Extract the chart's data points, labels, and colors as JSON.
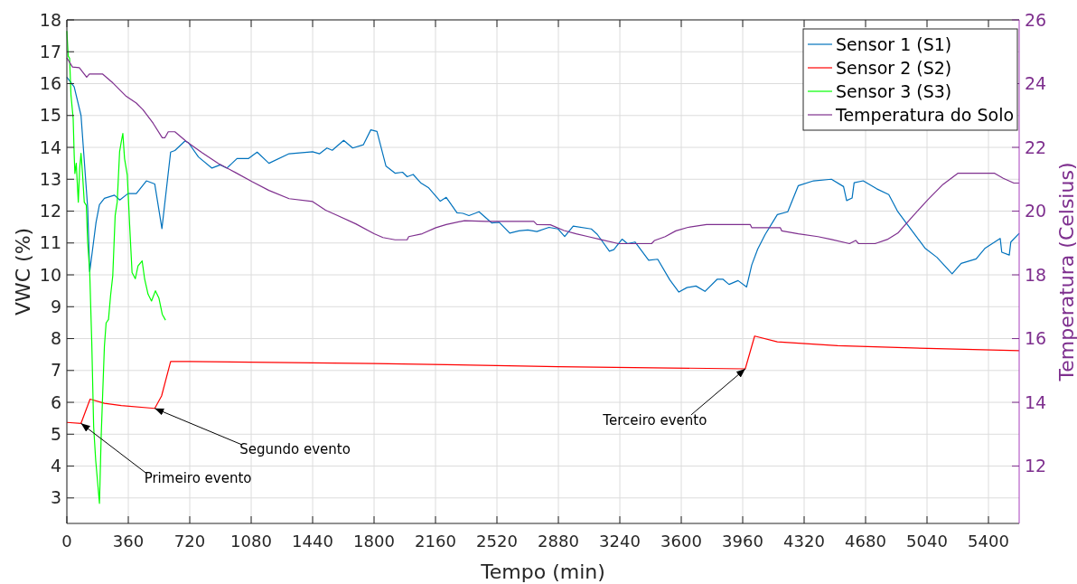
{
  "chart_data": {
    "type": "line",
    "xlabel": "Tempo (min)",
    "ylabel": "VWC (%)",
    "y2label": "Temperatura (Celsius)",
    "xlim": [
      0,
      5580
    ],
    "xticks": [
      0,
      360,
      720,
      1080,
      1440,
      1800,
      2160,
      2520,
      2880,
      3240,
      3600,
      3960,
      4320,
      4680,
      5040,
      5400
    ],
    "ylim": [
      2.2,
      18
    ],
    "yticks": [
      3,
      4,
      5,
      6,
      7,
      8,
      9,
      10,
      11,
      12,
      13,
      14,
      15,
      16,
      17,
      18
    ],
    "y2lim": [
      10.2,
      26
    ],
    "y2ticks": [
      12,
      14,
      16,
      18,
      20,
      22,
      24,
      26
    ],
    "grid": true,
    "legend": "top right",
    "line_style": "solid",
    "marker": "none",
    "series": [
      {
        "name": "Sensor 1 (S1)",
        "color": "#0072bd",
        "x": [
          0,
          43,
          83,
          122,
          134,
          171,
          191,
          220,
          279,
          310,
          358,
          407,
          466,
          515,
          557,
          608,
          633,
          692,
          712,
          771,
          850,
          899,
          938,
          997,
          1065,
          1115,
          1184,
          1302,
          1440,
          1481,
          1524,
          1555,
          1622,
          1675,
          1737,
          1781,
          1817,
          1870,
          1923,
          1967,
          1994,
          2029,
          2073,
          2118,
          2188,
          2223,
          2286,
          2321,
          2356,
          2415,
          2489,
          2533,
          2595,
          2648,
          2701,
          2754,
          2825,
          2878,
          2917,
          2967,
          3073,
          3108,
          3179,
          3205,
          3253,
          3285,
          3329,
          3409,
          3462,
          3533,
          3586,
          3633,
          3686,
          3739,
          3810,
          3845,
          3880,
          3933,
          3983,
          4013,
          4048,
          4092,
          4163,
          4224,
          4286,
          4375,
          4480,
          4551,
          4569,
          4601,
          4613,
          4666,
          4745,
          4816,
          4869,
          4922,
          5028,
          5098,
          5187,
          5240,
          5328,
          5381,
          5469,
          5478,
          5522,
          5531,
          5580
        ],
        "values": [
          16.2,
          15.9,
          15.0,
          12.1,
          10.1,
          11.65,
          12.2,
          12.4,
          12.5,
          12.35,
          12.55,
          12.55,
          12.95,
          12.85,
          11.45,
          13.85,
          13.9,
          14.2,
          14.15,
          13.7,
          13.35,
          13.45,
          13.35,
          13.65,
          13.65,
          13.85,
          13.5,
          13.8,
          13.86,
          13.8,
          13.98,
          13.91,
          14.22,
          13.98,
          14.08,
          14.55,
          14.5,
          13.41,
          13.19,
          13.22,
          13.08,
          13.15,
          12.89,
          12.74,
          12.31,
          12.43,
          11.95,
          11.93,
          11.86,
          11.98,
          11.63,
          11.65,
          11.31,
          11.38,
          11.41,
          11.36,
          11.49,
          11.44,
          11.2,
          11.53,
          11.44,
          11.27,
          10.74,
          10.79,
          11.12,
          10.98,
          11.03,
          10.46,
          10.49,
          9.84,
          9.46,
          9.6,
          9.65,
          9.48,
          9.86,
          9.86,
          9.7,
          9.82,
          9.62,
          10.31,
          10.81,
          11.27,
          11.89,
          11.98,
          12.8,
          12.95,
          13.0,
          12.77,
          12.33,
          12.41,
          12.89,
          12.95,
          12.7,
          12.52,
          11.98,
          11.6,
          10.84,
          10.55,
          10.03,
          10.36,
          10.5,
          10.84,
          11.14,
          10.71,
          10.62,
          11.03,
          11.3
        ]
      },
      {
        "name": "Sensor 2 (S2)",
        "color": "#ff0000",
        "x": [
          0,
          83,
          136,
          220,
          319,
          515,
          555,
          608,
          712,
          1800,
          2880,
          3975,
          4030,
          4163,
          4516,
          5045,
          5580
        ],
        "values": [
          5.37,
          5.34,
          6.1,
          5.97,
          5.9,
          5.81,
          6.2,
          7.28,
          7.28,
          7.22,
          7.12,
          7.05,
          8.08,
          7.9,
          7.78,
          7.69,
          7.62
        ]
      },
      {
        "name": "Sensor 3 (S3)",
        "color": "#00ff00",
        "x": [
          0,
          8,
          16,
          24,
          37,
          43,
          47,
          55,
          67,
          75,
          83,
          91,
          102,
          114,
          122,
          134,
          146,
          157,
          169,
          181,
          191,
          201,
          210,
          220,
          230,
          244,
          256,
          269,
          283,
          295,
          309,
          319,
          328,
          338,
          354,
          368,
          382,
          401,
          417,
          441,
          456,
          476,
          496,
          519,
          539,
          559,
          578
        ],
        "values": [
          17.65,
          16.86,
          16.8,
          15.65,
          14.9,
          13.76,
          13.18,
          13.5,
          12.28,
          13.34,
          13.81,
          13.23,
          12.28,
          12.18,
          11.02,
          10.07,
          7.86,
          5.23,
          4.18,
          3.44,
          2.83,
          4.92,
          6.28,
          7.76,
          8.49,
          8.6,
          9.34,
          9.97,
          11.86,
          12.28,
          13.86,
          14.18,
          14.44,
          13.65,
          13.13,
          11.55,
          10.07,
          9.88,
          10.28,
          10.44,
          9.86,
          9.39,
          9.18,
          9.5,
          9.28,
          8.76,
          8.58
        ]
      },
      {
        "name": "Temperatura do Solo",
        "color": "#7e2f8e",
        "axis": "y2",
        "x": [
          0,
          33,
          73,
          116,
          132,
          210,
          270,
          348,
          407,
          446,
          505,
          559,
          574,
          594,
          633,
          702,
          791,
          889,
          988,
          1086,
          1184,
          1302,
          1440,
          1516,
          1587,
          1693,
          1800,
          1852,
          1923,
          1994,
          2003,
          2082,
          2162,
          2223,
          2330,
          2454,
          2736,
          2754,
          2833,
          2913,
          2984,
          3055,
          3125,
          3232,
          3426,
          3444,
          3506,
          3568,
          3639,
          3748,
          4004,
          4013,
          4180,
          4189,
          4286,
          4401,
          4480,
          4586,
          4622,
          4639,
          4736,
          4807,
          4869,
          4957,
          5045,
          5134,
          5222,
          5434,
          5487,
          5549,
          5580
        ],
        "values": [
          24.81,
          24.52,
          24.5,
          24.2,
          24.3,
          24.3,
          24.02,
          23.6,
          23.39,
          23.18,
          22.76,
          22.3,
          22.3,
          22.49,
          22.49,
          22.18,
          21.84,
          21.49,
          21.21,
          20.92,
          20.65,
          20.39,
          20.3,
          20.03,
          19.86,
          19.6,
          19.29,
          19.17,
          19.1,
          19.1,
          19.2,
          19.29,
          19.48,
          19.58,
          19.7,
          19.68,
          19.68,
          19.58,
          19.57,
          19.39,
          19.29,
          19.2,
          19.11,
          18.98,
          18.98,
          19.08,
          19.2,
          19.38,
          19.49,
          19.58,
          19.58,
          19.48,
          19.48,
          19.38,
          19.29,
          19.2,
          19.11,
          18.98,
          19.08,
          18.98,
          18.98,
          19.11,
          19.31,
          19.84,
          20.36,
          20.84,
          21.19,
          21.19,
          21.03,
          20.88,
          20.88
        ]
      }
    ],
    "annotations": [
      {
        "text": "Primeiro evento",
        "x": 83,
        "y": 5.34
      },
      {
        "text": "Segundo evento",
        "x": 515,
        "y": 5.81
      },
      {
        "text": "Terceiro evento",
        "x": 3975,
        "y": 7.05
      }
    ]
  }
}
